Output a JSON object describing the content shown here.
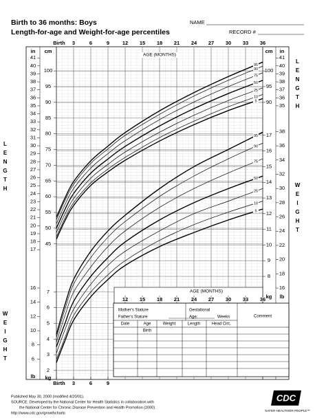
{
  "header": {
    "title": "Birth to 36 months: Boys",
    "subtitle": "Length-for-age and Weight-for-age percentiles",
    "name_label": "NAME",
    "record_label": "RECORD #"
  },
  "chart_data": [
    {
      "type": "line",
      "title": "LENGTH",
      "xlabel": "AGE (MONTHS)",
      "ylabel": "cm",
      "y2label": "in",
      "x": [
        0,
        1.5,
        3,
        6,
        9,
        12,
        18,
        24,
        30,
        36
      ],
      "xlim": [
        0,
        36
      ],
      "xticks": [
        {
          "value": 0,
          "label": "Birth"
        },
        3,
        6,
        9,
        12,
        15,
        18,
        21,
        24,
        27,
        30,
        33,
        36
      ],
      "ylim": [
        43,
        106.8
      ],
      "yticks": [
        45,
        50,
        55,
        60,
        65,
        70,
        75,
        80,
        85,
        90,
        95,
        100
      ],
      "y2lim": [
        16.93,
        42.05
      ],
      "y2ticks": [
        17,
        18,
        19,
        20,
        21,
        22,
        23,
        24,
        25,
        26,
        27,
        28,
        29,
        30,
        31,
        32,
        33,
        34,
        35,
        36,
        37,
        38,
        39,
        40,
        41
      ],
      "yticks_right": [
        90,
        95,
        100
      ],
      "y2ticks_right": [
        35,
        36,
        37,
        38,
        39,
        40,
        41
      ],
      "series": [
        {
          "name": "5",
          "color": "#000000",
          "width": 1.4,
          "values": [
            46.5,
            52.4,
            57.2,
            63.6,
            67.9,
            71.6,
            77.7,
            82.9,
            87.4,
            91.2
          ]
        },
        {
          "name": "10",
          "color": "#000000",
          "width": 0.7,
          "values": [
            47.3,
            53.2,
            58.1,
            64.4,
            68.8,
            72.5,
            78.8,
            84.0,
            88.6,
            92.5
          ]
        },
        {
          "name": "25",
          "color": "#000000",
          "width": 0.7,
          "values": [
            48.6,
            54.5,
            59.4,
            65.9,
            70.3,
            74.2,
            80.5,
            85.9,
            90.6,
            94.6
          ]
        },
        {
          "name": "50",
          "color": "#000000",
          "width": 1.4,
          "values": [
            50,
            56,
            61,
            67.5,
            72,
            76,
            82.5,
            88,
            92.8,
            97
          ]
        },
        {
          "name": "75",
          "color": "#000000",
          "width": 0.7,
          "values": [
            51.4,
            57.5,
            62.6,
            69.1,
            73.7,
            77.8,
            84.5,
            90.1,
            95.0,
            99.4
          ]
        },
        {
          "name": "90",
          "color": "#000000",
          "width": 0.7,
          "values": [
            52.7,
            58.8,
            63.9,
            70.6,
            75.2,
            79.5,
            86.2,
            92.0,
            97.0,
            101.5
          ]
        },
        {
          "name": "95",
          "color": "#000000",
          "width": 1.4,
          "values": [
            53.5,
            59.6,
            64.8,
            71.4,
            76.1,
            80.4,
            87.3,
            93.1,
            98.2,
            102.8
          ]
        }
      ]
    },
    {
      "type": "line",
      "title": "WEIGHT",
      "xlabel": "AGE (MONTHS)",
      "ylabel": "kg",
      "y2label": "lb",
      "x": [
        0,
        1.5,
        3,
        6,
        9,
        12,
        18,
        24,
        30,
        36
      ],
      "xlim": [
        0,
        36
      ],
      "xticks": [
        {
          "value": 0,
          "label": "Birth"
        },
        3,
        6,
        9
      ],
      "xticks_inner": [
        12,
        15,
        18,
        21,
        24,
        27,
        30,
        33,
        36
      ],
      "ylim": [
        1.6,
        17.8
      ],
      "yticks": [
        2,
        3,
        4,
        5,
        6,
        7
      ],
      "y2lim": [
        3.53,
        39.24
      ],
      "y2ticks": [
        6,
        8,
        10,
        12,
        14,
        16
      ],
      "yticks_right": [
        8,
        9,
        10,
        11,
        12,
        13,
        14,
        15,
        16,
        17
      ],
      "y2ticks_right": [
        16,
        18,
        20,
        22,
        24,
        26,
        28,
        30,
        32,
        34,
        36,
        38
      ],
      "series": [
        {
          "name": "5",
          "color": "#000000",
          "width": 1.4,
          "values": [
            2.5,
            3.9,
            5.2,
            6.7,
            7.8,
            8.7,
            9.9,
            10.8,
            11.6,
            12.3
          ]
        },
        {
          "name": "10",
          "color": "#000000",
          "width": 0.7,
          "values": [
            2.7,
            4.1,
            5.5,
            7.0,
            8.1,
            9.0,
            10.3,
            11.3,
            12.1,
            12.8
          ]
        },
        {
          "name": "25",
          "color": "#000000",
          "width": 0.7,
          "values": [
            3.1,
            4.6,
            5.9,
            7.5,
            8.7,
            9.6,
            10.9,
            12.0,
            12.8,
            13.6
          ]
        },
        {
          "name": "50",
          "color": "#000000",
          "width": 1.4,
          "values": [
            3.5,
            5.0,
            6.4,
            8.0,
            9.2,
            10.2,
            11.6,
            12.7,
            13.6,
            14.4
          ]
        },
        {
          "name": "75",
          "color": "#000000",
          "width": 0.7,
          "values": [
            3.8,
            5.5,
            7.0,
            8.6,
            9.9,
            10.9,
            12.4,
            13.6,
            14.6,
            15.5
          ]
        },
        {
          "name": "90",
          "color": "#000000",
          "width": 0.7,
          "values": [
            4.1,
            5.9,
            7.5,
            9.2,
            10.5,
            11.5,
            13.1,
            14.4,
            15.5,
            16.5
          ]
        },
        {
          "name": "95",
          "color": "#000000",
          "width": 1.4,
          "values": [
            4.3,
            6.2,
            7.8,
            9.6,
            10.9,
            11.9,
            13.6,
            15.0,
            16.1,
            17.2
          ]
        }
      ]
    }
  ],
  "record_table": {
    "mothers_stature": "Mother's Stature",
    "fathers_stature": "Father's Stature",
    "gestational": "Gestational",
    "age": "Age:",
    "weeks": "Weeks",
    "comment": "Comment",
    "columns": [
      "Date",
      "Age",
      "Weight",
      "Length",
      "Head Circ."
    ],
    "first_age": "Birth"
  },
  "footer": {
    "lines": [
      "Published May 30, 2000 (modified 4/20/01).",
      "SOURCE: Developed by the National Center for Health Statistics in collaboration with",
      "the National Center for Chronic Disease Prevention and Health Promotion (2000).",
      "http://www.cdc.gov/growthcharts"
    ],
    "logo": "CDC",
    "tagline": "SAFER·HEALTHIER·PEOPLE™"
  }
}
